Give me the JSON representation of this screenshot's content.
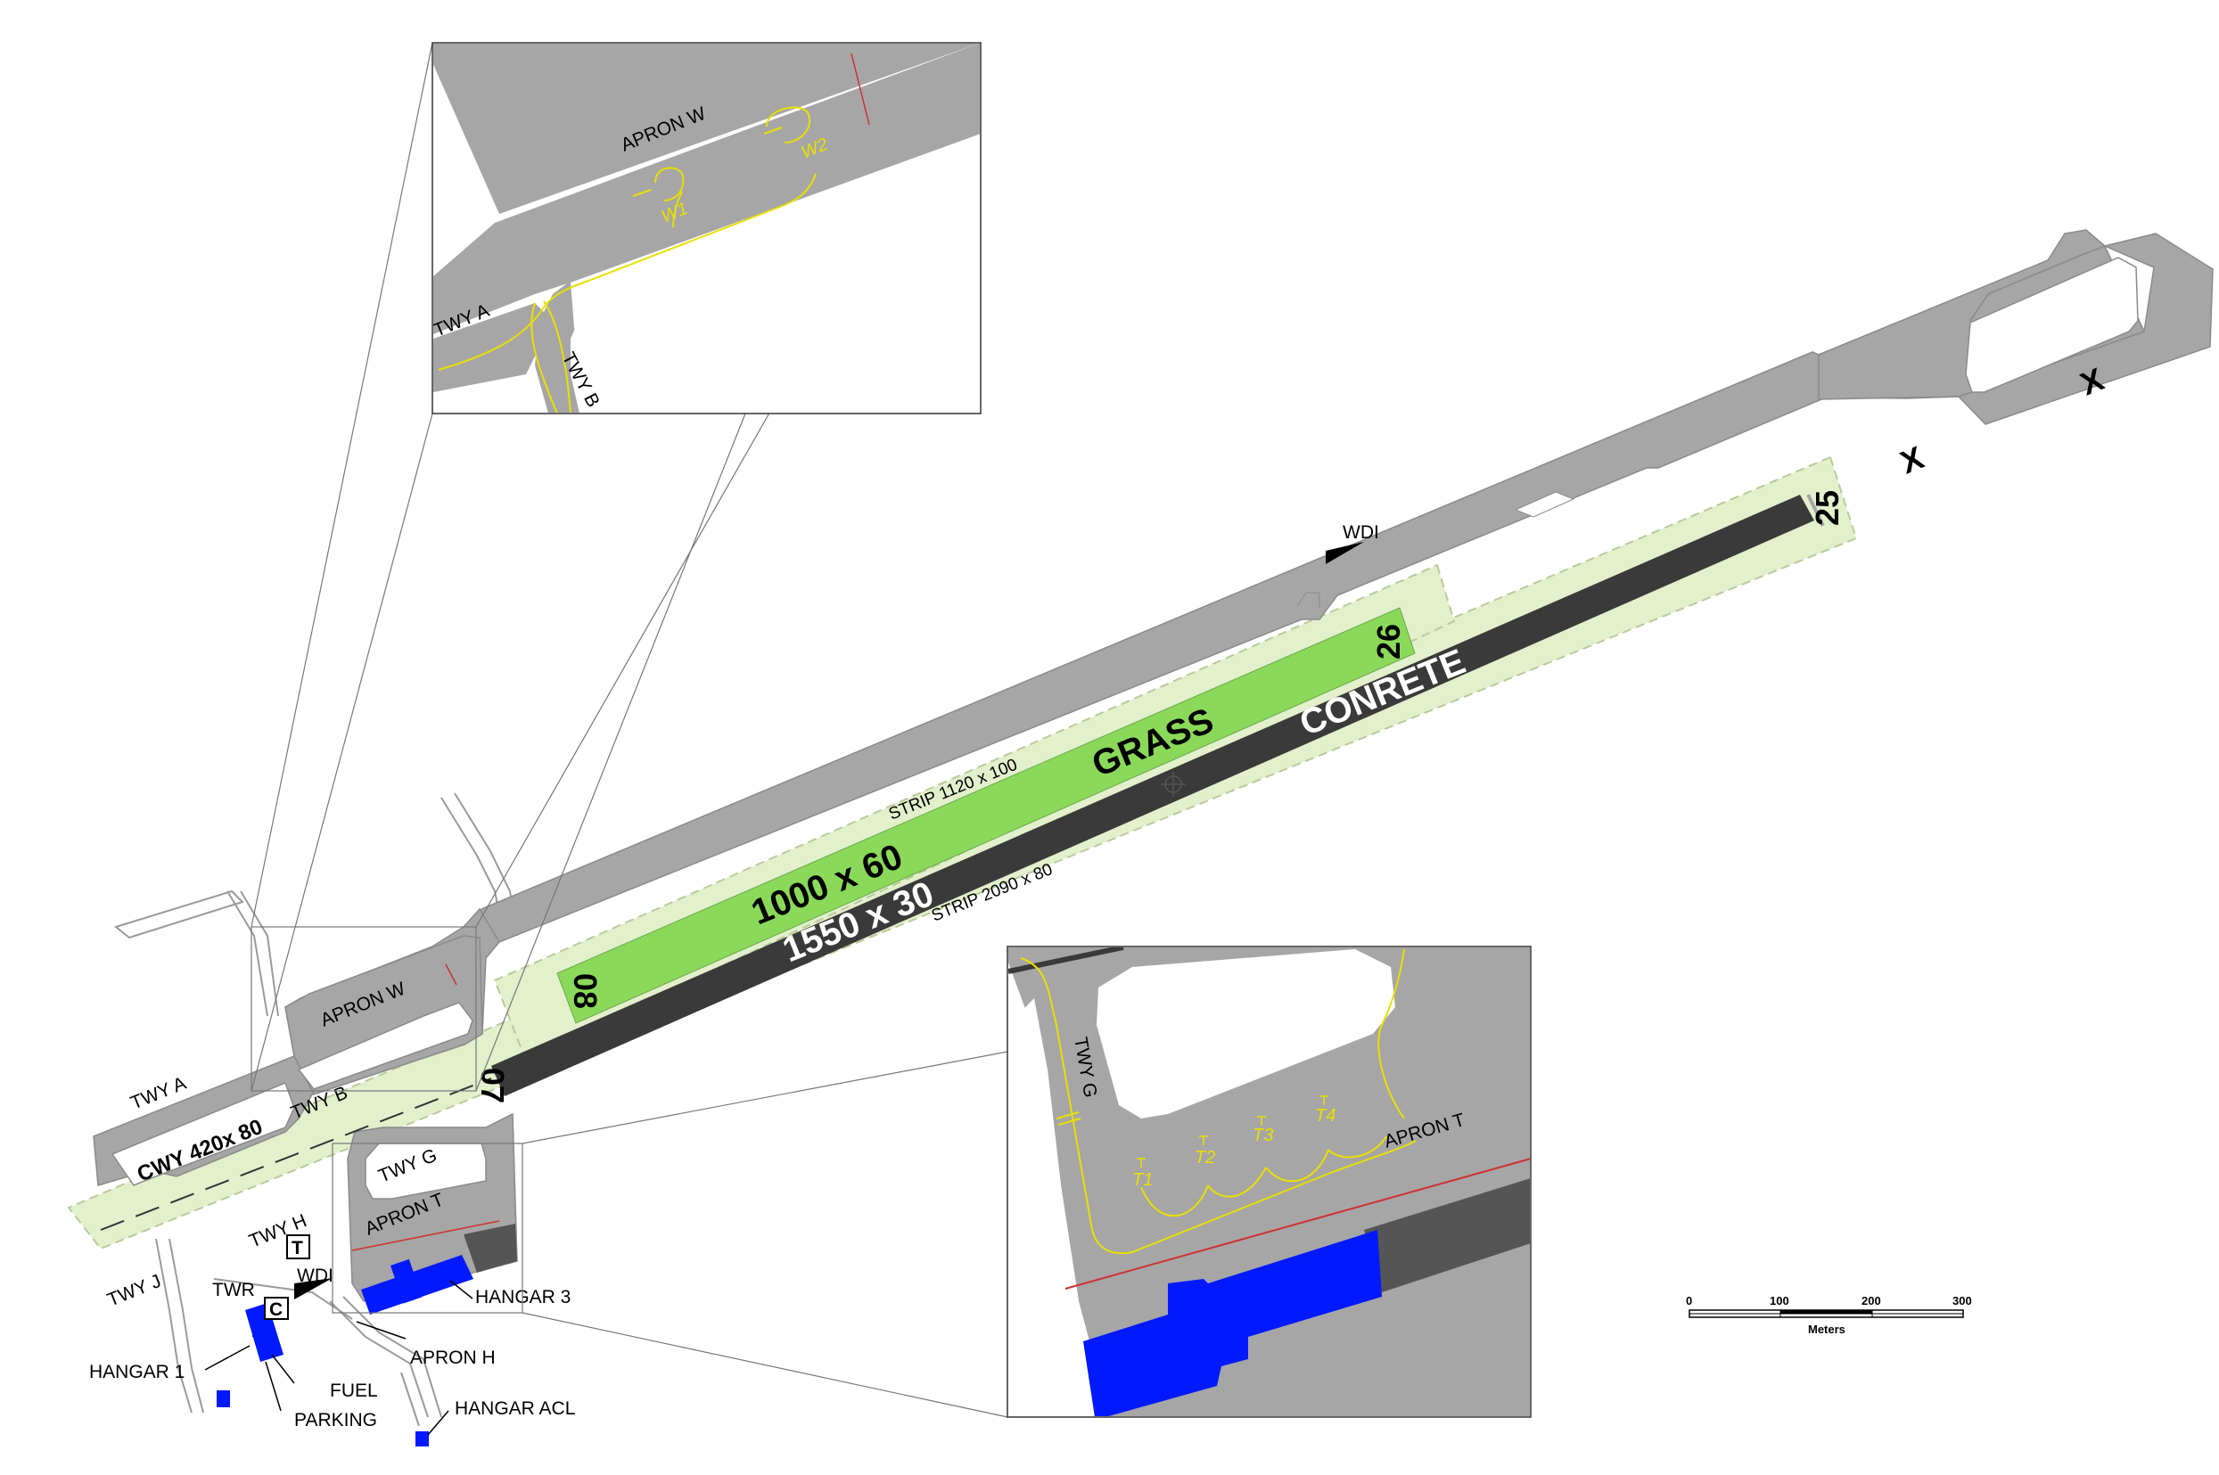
{
  "runway_grass": {
    "surface": "GRASS",
    "dimensions": "1000 x 60",
    "strip": "STRIP  1120 x 100",
    "end_west": "08",
    "end_east": "26",
    "color": "#8bd95a"
  },
  "runway_concrete": {
    "surface": "CONRETE",
    "dimensions": "1550 x 30",
    "strip": "STRIP  2090 x 80",
    "end_west": "07",
    "end_east": "25",
    "color": "#3a3a3a"
  },
  "clearway": "CWY 420x 80",
  "taxiways": {
    "a": "TWY A",
    "b": "TWY B",
    "g": "TWY G",
    "h": "TWY H",
    "j": "TWY J"
  },
  "aprons": {
    "w": "APRON W",
    "t": "APRON T",
    "h": "APRON H"
  },
  "facilities": {
    "wdi": "WDI",
    "twr": "TWR",
    "hangar1": "HANGAR 1",
    "hangar3": "HANGAR 3",
    "hangar_acl": "HANGAR ACL",
    "fuel": "FUEL",
    "parking": "PARKING",
    "marker_c": "C",
    "marker_t": "T"
  },
  "closed_marker": "X",
  "inset_w": {
    "apron": "APRON W",
    "twy_a": "TWY A",
    "twy_b": "TWY B",
    "stands": [
      "W1",
      "W2"
    ]
  },
  "inset_t": {
    "apron": "APRON T",
    "twy_g": "TWY G",
    "stands": [
      "T1",
      "T2",
      "T3",
      "T4"
    ]
  },
  "scale_bar": {
    "ticks": [
      "0",
      "100",
      "200",
      "300"
    ],
    "unit": "Meters"
  },
  "colors": {
    "pavement": "#a6a6a6",
    "strip": "#e2f0cc",
    "building": "#0019ff",
    "marking": "#e8e000",
    "hold_line": "#d03030"
  }
}
